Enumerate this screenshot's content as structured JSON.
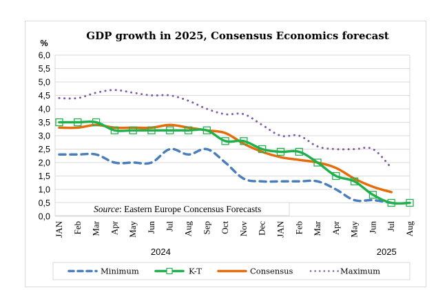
{
  "chart_data": {
    "type": "line",
    "title": "GDP growth in 2025, Consensus Economics forecast",
    "ylabel": "%",
    "xlabel": "",
    "ylim": [
      0,
      6
    ],
    "ytick_step": 0.5,
    "ytick_labels": [
      "0,0",
      "0,5",
      "1,0",
      "1,5",
      "2,0",
      "2,5",
      "3,0",
      "3,5",
      "4,0",
      "4,5",
      "5,0",
      "5,5",
      "6,0"
    ],
    "grid": true,
    "categories": [
      "JAN",
      "Feb",
      "Mar",
      "Apr",
      "May",
      "Jun",
      "Jul",
      "Aug",
      "Sep",
      "Oct",
      "Nov",
      "Dec",
      "JAN",
      "Feb",
      "Mar",
      "Apr",
      "May",
      "Jun",
      "Jul",
      "Aug"
    ],
    "year_groups": [
      {
        "label": "2024",
        "from": 0,
        "to": 11
      },
      {
        "label": "2025",
        "from": 12,
        "to": 19
      }
    ],
    "source_note": {
      "italic": "Source",
      "rest": ": Eastern Europe Concensus Forecasts"
    },
    "legend_position": "bottom",
    "series": [
      {
        "name": "Minimum",
        "color": "#4a7ebb",
        "style": "dashed",
        "values": [
          2.3,
          2.3,
          2.3,
          2.0,
          2.0,
          2.0,
          2.5,
          2.3,
          2.5,
          2.0,
          1.4,
          1.3,
          1.3,
          1.3,
          1.3,
          1.0,
          0.6,
          0.6,
          0.5,
          null
        ]
      },
      {
        "name": "K-T",
        "color": "#1fb04c",
        "style": "solid-square-markers",
        "values": [
          3.5,
          3.5,
          3.5,
          3.2,
          3.2,
          3.2,
          3.2,
          3.2,
          3.2,
          2.8,
          2.8,
          2.5,
          2.4,
          2.4,
          2.0,
          1.5,
          1.3,
          0.8,
          0.5,
          0.5
        ]
      },
      {
        "name": "Consensus",
        "color": "#e46c0a",
        "style": "solid",
        "values": [
          3.3,
          3.3,
          3.4,
          3.3,
          3.3,
          3.3,
          3.4,
          3.3,
          3.2,
          3.1,
          2.7,
          2.4,
          2.2,
          2.1,
          2.0,
          1.8,
          1.4,
          1.1,
          0.9,
          null
        ]
      },
      {
        "name": "Maximum",
        "color": "#7d5ba6",
        "style": "dotted",
        "values": [
          4.4,
          4.4,
          4.6,
          4.7,
          4.6,
          4.5,
          4.5,
          4.3,
          4.0,
          3.8,
          3.8,
          3.4,
          3.0,
          3.0,
          2.6,
          2.5,
          2.5,
          2.5,
          1.8,
          null
        ]
      }
    ]
  }
}
